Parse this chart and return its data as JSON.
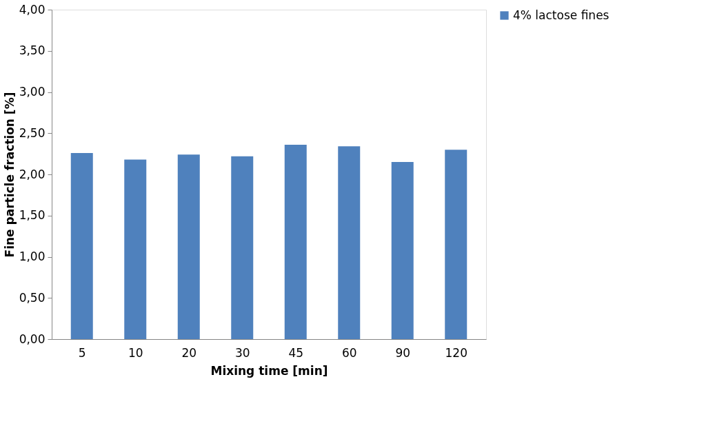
{
  "chart_data": {
    "type": "bar",
    "xlabel": "Mixing time [min]",
    "ylabel": "Fine particle fraction [%]",
    "categories": [
      "5",
      "10",
      "20",
      "30",
      "45",
      "60",
      "90",
      "120"
    ],
    "series": [
      {
        "name": "4% lactose fines",
        "color": "#4f81bd",
        "values": [
          2.26,
          2.18,
          2.24,
          2.22,
          2.36,
          2.34,
          2.15,
          2.3
        ]
      }
    ],
    "ylim": [
      0,
      4
    ],
    "yticks": [
      {
        "value": 0,
        "label": "0,00"
      },
      {
        "value": 0.5,
        "label": "0,50"
      },
      {
        "value": 1,
        "label": "1,00"
      },
      {
        "value": 1.5,
        "label": "1,50"
      },
      {
        "value": 2,
        "label": "2,00"
      },
      {
        "value": 2.5,
        "label": "2,50"
      },
      {
        "value": 3,
        "label": "3,00"
      },
      {
        "value": 3.5,
        "label": "3,50"
      },
      {
        "value": 4,
        "label": "4,00"
      }
    ],
    "grid": false,
    "legend": "right"
  }
}
